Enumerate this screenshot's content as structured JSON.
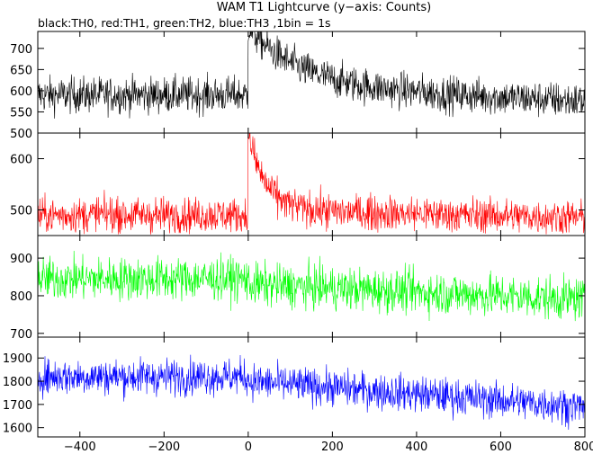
{
  "title": "WAM T1 Lightcurve (y−axis: Counts)",
  "subtitle": "black:TH0, red:TH1, green:TH2, blue:TH3 ,1bin = 1s",
  "chart_data": {
    "type": "line",
    "x_range": [
      -500,
      800
    ],
    "x_ticks": [
      -400,
      -200,
      0,
      200,
      400,
      600,
      800
    ],
    "x_tick_labels": [
      "−400",
      "−200",
      "0",
      "200",
      "400",
      "600",
      "800"
    ],
    "panels": [
      {
        "series": "TH0",
        "color": "#000000",
        "ylim": [
          500,
          740
        ],
        "y_ticks": [
          500,
          550,
          600,
          650,
          700
        ],
        "y_tick_labels": [
          "500",
          "550",
          "600",
          "650",
          "700"
        ],
        "pre_level": 590,
        "noise": 30,
        "peak": 730,
        "decay_s": 120,
        "post_level": 610,
        "end_level": 575
      },
      {
        "series": "TH1",
        "color": "#ff0000",
        "ylim": [
          450,
          650
        ],
        "y_ticks": [
          500,
          600
        ],
        "y_tick_labels": [
          "500",
          "600"
        ],
        "pre_level": 490,
        "noise": 24,
        "peak": 640,
        "decay_s": 40,
        "post_level": 500,
        "end_level": 485
      },
      {
        "series": "TH2",
        "color": "#00ff00",
        "ylim": [
          690,
          960
        ],
        "y_ticks": [
          700,
          800,
          900
        ],
        "y_tick_labels": [
          "700",
          "800",
          "900"
        ],
        "pre_level": 845,
        "noise": 40,
        "peak": 845,
        "decay_s": 1,
        "post_level": 830,
        "end_level": 790
      },
      {
        "series": "TH3",
        "color": "#0000ff",
        "ylim": [
          1560,
          1990
        ],
        "y_ticks": [
          1600,
          1700,
          1800,
          1900
        ],
        "y_tick_labels": [
          "1600",
          "1700",
          "1800",
          "1900"
        ],
        "pre_level": 1820,
        "noise": 55,
        "peak": 1820,
        "decay_s": 1,
        "post_level": 1800,
        "end_level": 1690
      }
    ]
  }
}
